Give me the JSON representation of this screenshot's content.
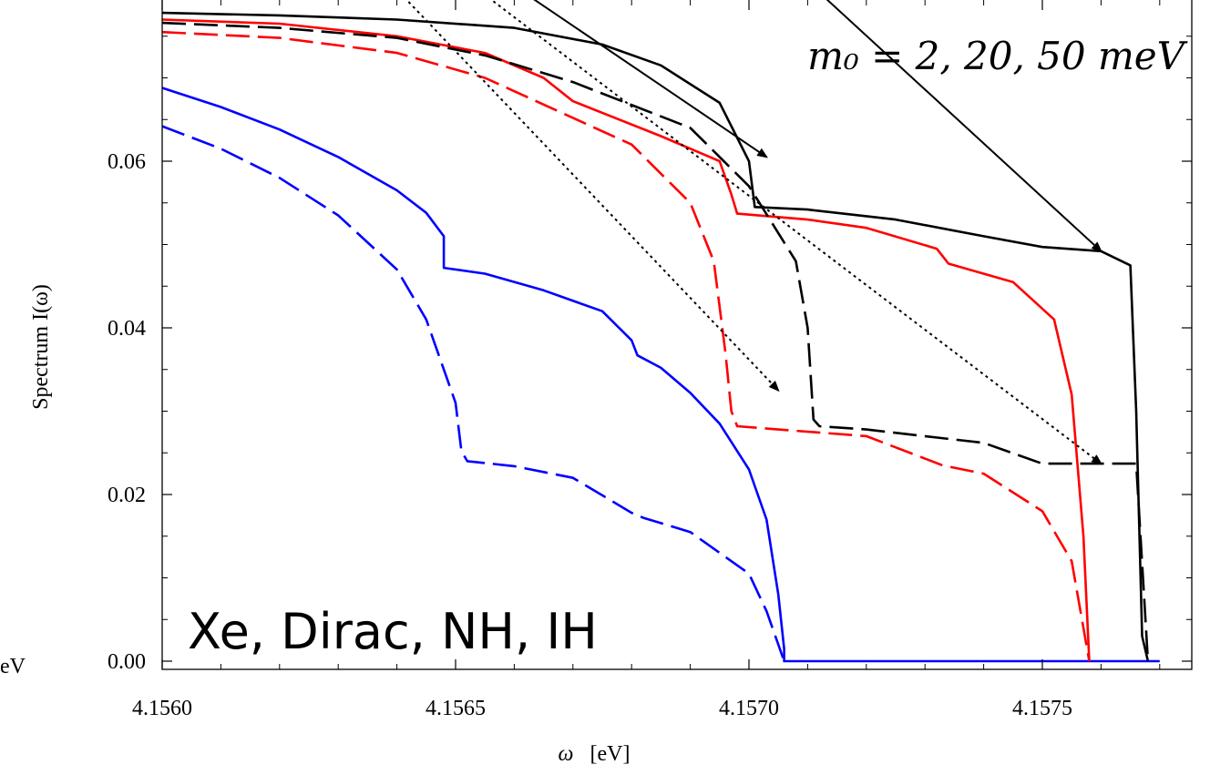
{
  "chart_data": {
    "type": "line",
    "title": "",
    "xlabel_symbol": "ω",
    "xlabel_unit": "[eV]",
    "ylabel": "Spectrum I(ω)",
    "xlim": [
      4.156,
      4.1577
    ],
    "ylim": [
      0.0,
      0.0775
    ],
    "grid": false,
    "x_ticks": [
      {
        "value": 4.156,
        "label": "4.1560"
      },
      {
        "value": 4.1565,
        "label": "4.1565"
      },
      {
        "value": 4.157,
        "label": "4.1570"
      },
      {
        "value": 4.1575,
        "label": "4.1575"
      }
    ],
    "y_ticks": [
      {
        "value": 0.0,
        "label": "0.00"
      },
      {
        "value": 0.02,
        "label": "0.02"
      },
      {
        "value": 0.04,
        "label": "0.04"
      },
      {
        "value": 0.06,
        "label": "0.06"
      }
    ],
    "x_minor_step": 0.0001,
    "y_minor_step": 0.005,
    "annotation_main": "Xe, Dirac, NH, IH",
    "annotation_mass": "m₀ = 2, 20, 50 meV",
    "edge_fragment": "eV",
    "series": [
      {
        "color": "#0000ff",
        "dash": "solid",
        "points": [
          [
            4.156,
            0.0688
          ],
          [
            4.1561,
            0.0665
          ],
          [
            4.1562,
            0.0638
          ],
          [
            4.1563,
            0.0605
          ],
          [
            4.1564,
            0.0565
          ],
          [
            4.15645,
            0.0538
          ],
          [
            4.15648,
            0.051
          ],
          [
            4.15648,
            0.0472
          ],
          [
            4.15655,
            0.0465
          ],
          [
            4.15665,
            0.0445
          ],
          [
            4.15675,
            0.042
          ],
          [
            4.1568,
            0.0385
          ],
          [
            4.15681,
            0.0367
          ],
          [
            4.15685,
            0.0352
          ],
          [
            4.1569,
            0.0322
          ],
          [
            4.15695,
            0.0285
          ],
          [
            4.157,
            0.023
          ],
          [
            4.15703,
            0.017
          ],
          [
            4.15705,
            0.008
          ],
          [
            4.15706,
            0.0015
          ],
          [
            4.15706,
            0.0
          ],
          [
            4.1577,
            0.0
          ]
        ]
      },
      {
        "color": "#0000ff",
        "dash": "dashed",
        "points": [
          [
            4.156,
            0.0642
          ],
          [
            4.1561,
            0.0615
          ],
          [
            4.1562,
            0.058
          ],
          [
            4.1563,
            0.0535
          ],
          [
            4.1564,
            0.047
          ],
          [
            4.15645,
            0.041
          ],
          [
            4.1565,
            0.031
          ],
          [
            4.15651,
            0.0252
          ],
          [
            4.15652,
            0.024
          ],
          [
            4.1566,
            0.0234
          ],
          [
            4.1567,
            0.022
          ],
          [
            4.1568,
            0.0178
          ],
          [
            4.15682,
            0.0172
          ],
          [
            4.1569,
            0.0155
          ],
          [
            4.157,
            0.0105
          ],
          [
            4.15703,
            0.006
          ],
          [
            4.15705,
            0.002
          ],
          [
            4.15706,
            0.0
          ]
        ]
      },
      {
        "color": "#ff0000",
        "dash": "solid",
        "points": [
          [
            4.156,
            0.077
          ],
          [
            4.1562,
            0.0765
          ],
          [
            4.1564,
            0.075
          ],
          [
            4.15655,
            0.073
          ],
          [
            4.15665,
            0.07
          ],
          [
            4.1567,
            0.0672
          ],
          [
            4.15685,
            0.063
          ],
          [
            4.15695,
            0.06
          ],
          [
            4.15697,
            0.056
          ],
          [
            4.15698,
            0.0537
          ],
          [
            4.1571,
            0.053
          ],
          [
            4.1572,
            0.052
          ],
          [
            4.15732,
            0.0495
          ],
          [
            4.15734,
            0.0477
          ],
          [
            4.15745,
            0.0455
          ],
          [
            4.15752,
            0.041
          ],
          [
            4.15755,
            0.032
          ],
          [
            4.15757,
            0.015
          ],
          [
            4.15758,
            0.0
          ]
        ]
      },
      {
        "color": "#ff0000",
        "dash": "dashed",
        "points": [
          [
            4.156,
            0.0755
          ],
          [
            4.1562,
            0.0748
          ],
          [
            4.1564,
            0.073
          ],
          [
            4.15655,
            0.07
          ],
          [
            4.15665,
            0.0668
          ],
          [
            4.1568,
            0.062
          ],
          [
            4.1569,
            0.055
          ],
          [
            4.15694,
            0.048
          ],
          [
            4.15696,
            0.037
          ],
          [
            4.15697,
            0.03
          ],
          [
            4.15698,
            0.0282
          ],
          [
            4.15705,
            0.0278
          ],
          [
            4.1572,
            0.027
          ],
          [
            4.15733,
            0.0235
          ],
          [
            4.1574,
            0.0225
          ],
          [
            4.1575,
            0.018
          ],
          [
            4.15755,
            0.012
          ],
          [
            4.15758,
            0.0
          ]
        ]
      },
      {
        "color": "#000000",
        "dash": "solid",
        "points": [
          [
            4.156,
            0.0778
          ],
          [
            4.1562,
            0.0775
          ],
          [
            4.1564,
            0.077
          ],
          [
            4.1566,
            0.076
          ],
          [
            4.15675,
            0.074
          ],
          [
            4.15685,
            0.0715
          ],
          [
            4.15695,
            0.067
          ],
          [
            4.157,
            0.06
          ],
          [
            4.15701,
            0.0545
          ],
          [
            4.1571,
            0.0542
          ],
          [
            4.15725,
            0.053
          ],
          [
            4.1574,
            0.051
          ],
          [
            4.1575,
            0.0497
          ],
          [
            4.1576,
            0.0492
          ],
          [
            4.15765,
            0.0475
          ],
          [
            4.15766,
            0.03
          ],
          [
            4.15767,
            0.003
          ],
          [
            4.15768,
            0.0
          ]
        ]
      },
      {
        "color": "#000000",
        "dash": "dashed",
        "points": [
          [
            4.156,
            0.0766
          ],
          [
            4.1562,
            0.076
          ],
          [
            4.1564,
            0.0748
          ],
          [
            4.15655,
            0.0727
          ],
          [
            4.1567,
            0.0695
          ],
          [
            4.1569,
            0.064
          ],
          [
            4.157,
            0.057
          ],
          [
            4.15708,
            0.048
          ],
          [
            4.1571,
            0.04
          ],
          [
            4.15711,
            0.029
          ],
          [
            4.15712,
            0.0282
          ],
          [
            4.1572,
            0.0278
          ],
          [
            4.1574,
            0.0262
          ],
          [
            4.1575,
            0.0237
          ],
          [
            4.15766,
            0.0237
          ],
          [
            4.15768,
            0.0
          ]
        ]
      }
    ],
    "arrows": [
      {
        "style": "solid",
        "from": [
          4.15637,
          0.092
        ],
        "to": [
          4.15703,
          0.0605
        ]
      },
      {
        "style": "solid",
        "from": [
          4.157,
          0.088
        ],
        "to": [
          4.1576,
          0.0492
        ]
      },
      {
        "style": "dotted",
        "from": [
          4.1563,
          0.088
        ],
        "to": [
          4.15705,
          0.0325
        ]
      },
      {
        "style": "dotted",
        "from": [
          4.1564,
          0.088
        ],
        "to": [
          4.1576,
          0.0237
        ]
      }
    ]
  }
}
